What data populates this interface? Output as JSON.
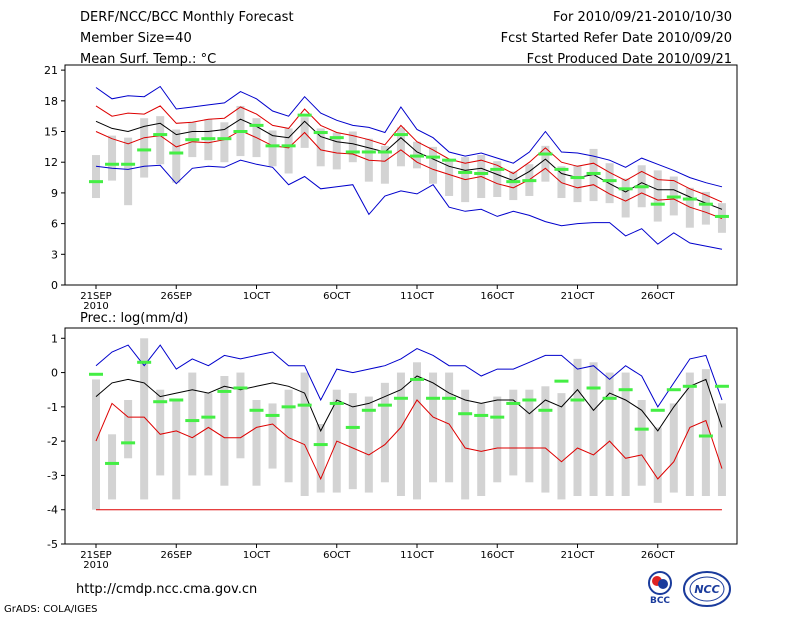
{
  "header": {
    "left": [
      "DERF/NCC/BCC Monthly Forecast",
      "Member Size=40",
      "Mean Surf. Temp.: °C"
    ],
    "right": [
      "For 2010/09/21-2010/10/30",
      "Fcst Started Refer Date 2010/09/20",
      "Fcst Produced Date 2010/09/21"
    ]
  },
  "footer": {
    "url": "http://cmdp.ncc.cma.gov.cn",
    "grads": "GrADS: COLA/IGES",
    "logo_left": "BCC",
    "logo_right": "NCC"
  },
  "colors": {
    "max": "#0000cc",
    "min": "#0000cc",
    "mean": "#000000",
    "spread": "#dd0000",
    "box": "#d3d3d3",
    "obs": "#44ee44",
    "baseline": "#dd0000"
  },
  "chart_data": [
    {
      "type": "line",
      "title": "Mean Surf. Temp.: °C",
      "xlabel": "",
      "ylabel": "°C",
      "x": [
        1,
        2,
        3,
        4,
        5,
        6,
        7,
        8,
        9,
        10,
        11,
        12,
        13,
        14,
        15,
        16,
        17,
        18,
        19,
        20,
        21,
        22,
        23,
        24,
        25,
        26,
        27,
        28,
        29,
        30,
        31,
        32,
        33,
        34,
        35,
        36,
        37,
        38,
        39,
        40
      ],
      "xtick_values": [
        1,
        6,
        11,
        16,
        21,
        26,
        31,
        36
      ],
      "xtick_labels": [
        "21SEP\n2010",
        "26SEP",
        "1OCT",
        "6OCT",
        "11OCT",
        "16OCT",
        "21OCT",
        "26OCT"
      ],
      "ylim": [
        0,
        21.5
      ],
      "yticks": [
        0,
        3,
        6,
        9,
        12,
        15,
        18,
        21
      ],
      "series": [
        {
          "name": "max",
          "values": [
            19.3,
            18.2,
            18.5,
            18.4,
            19.4,
            17.2,
            17.4,
            17.6,
            17.8,
            18.9,
            18.2,
            17.0,
            16.5,
            18.4,
            16.8,
            16.1,
            15.6,
            15.4,
            14.9,
            17.4,
            15.2,
            14.4,
            13.0,
            12.6,
            12.9,
            12.4,
            11.9,
            13.0,
            15.0,
            13.0,
            12.9,
            12.6,
            12.2,
            11.5,
            12.4,
            11.8,
            11.2,
            10.5,
            10.0,
            9.6
          ]
        },
        {
          "name": "upper",
          "values": [
            17.5,
            16.5,
            16.8,
            16.7,
            17.5,
            15.8,
            15.9,
            16.2,
            16.3,
            17.4,
            16.7,
            15.6,
            15.3,
            17.2,
            15.6,
            14.9,
            14.6,
            14.2,
            13.7,
            15.6,
            14.0,
            13.2,
            12.3,
            11.9,
            12.2,
            11.7,
            10.9,
            12.0,
            13.4,
            12.0,
            11.6,
            11.9,
            11.0,
            10.2,
            11.1,
            10.3,
            10.2,
            9.4,
            8.8,
            8.1
          ]
        },
        {
          "name": "mean",
          "values": [
            16.0,
            15.3,
            15.0,
            15.5,
            15.8,
            14.7,
            15.0,
            15.0,
            15.2,
            16.2,
            15.5,
            14.6,
            14.4,
            16.0,
            14.5,
            14.0,
            13.8,
            13.4,
            13.0,
            14.4,
            13.0,
            12.3,
            11.6,
            11.2,
            11.4,
            10.8,
            10.2,
            11.1,
            12.3,
            10.9,
            10.5,
            10.8,
            9.9,
            9.1,
            10.0,
            9.3,
            9.3,
            8.6,
            8.0,
            7.4
          ]
        },
        {
          "name": "lower",
          "values": [
            15.0,
            14.3,
            13.8,
            14.4,
            14.6,
            13.5,
            14.0,
            13.9,
            14.2,
            15.1,
            14.4,
            13.6,
            13.4,
            14.9,
            13.2,
            12.9,
            12.8,
            12.2,
            12.1,
            13.2,
            12.0,
            11.3,
            10.8,
            10.3,
            10.6,
            9.9,
            9.5,
            10.3,
            11.4,
            10.0,
            9.5,
            9.8,
            8.9,
            8.2,
            9.0,
            8.3,
            8.4,
            7.6,
            7.1,
            6.5
          ]
        },
        {
          "name": "min",
          "values": [
            11.6,
            11.4,
            11.3,
            11.6,
            11.7,
            9.9,
            11.4,
            11.6,
            11.5,
            12.2,
            11.8,
            11.5,
            9.8,
            10.6,
            9.4,
            9.6,
            9.8,
            6.9,
            8.7,
            9.2,
            8.9,
            9.8,
            7.6,
            7.2,
            7.4,
            6.7,
            7.2,
            6.8,
            6.2,
            5.8,
            6.0,
            6.1,
            6.1,
            4.8,
            5.5,
            4.0,
            5.1,
            4.1,
            3.8,
            3.5
          ]
        }
      ],
      "boxes": {
        "low": [
          8.5,
          10.2,
          7.8,
          10.5,
          11.8,
          10.0,
          12.5,
          12.2,
          12.0,
          12.6,
          12.5,
          11.6,
          10.9,
          13.4,
          11.6,
          11.3,
          12.0,
          10.1,
          9.9,
          11.6,
          11.4,
          9.9,
          8.7,
          8.1,
          8.5,
          8.6,
          8.3,
          8.7,
          10.1,
          8.5,
          8.1,
          8.2,
          8.0,
          6.6,
          7.6,
          6.2,
          6.8,
          5.6,
          5.9,
          5.1
        ],
        "high": [
          12.7,
          14.6,
          14.4,
          16.3,
          16.5,
          15.2,
          15.9,
          16.2,
          15.9,
          17.5,
          16.3,
          15.1,
          15.3,
          16.4,
          15.3,
          14.9,
          15.0,
          14.3,
          13.6,
          15.4,
          14.0,
          13.5,
          12.1,
          12.5,
          12.7,
          12.1,
          11.1,
          11.8,
          13.6,
          11.6,
          11.7,
          13.3,
          11.9,
          10.4,
          11.7,
          11.2,
          10.6,
          9.5,
          9.1,
          8.0
        ]
      },
      "observed": [
        10.1,
        11.8,
        11.8,
        13.2,
        14.7,
        12.9,
        14.2,
        14.3,
        14.3,
        15.0,
        15.6,
        13.6,
        13.6,
        16.6,
        14.9,
        14.4,
        13.0,
        13.0,
        13.0,
        14.7,
        12.6,
        12.5,
        12.2,
        11.0,
        10.9,
        11.3,
        10.1,
        10.2,
        12.8,
        11.3,
        10.5,
        10.9,
        10.2,
        9.4,
        9.6,
        7.9,
        8.6,
        8.4,
        7.9,
        6.7
      ]
    },
    {
      "type": "line",
      "title": "Prec.: log(mm/d)",
      "xlabel": "",
      "ylabel": "log(mm/d)",
      "x": [
        1,
        2,
        3,
        4,
        5,
        6,
        7,
        8,
        9,
        10,
        11,
        12,
        13,
        14,
        15,
        16,
        17,
        18,
        19,
        20,
        21,
        22,
        23,
        24,
        25,
        26,
        27,
        28,
        29,
        30,
        31,
        32,
        33,
        34,
        35,
        36,
        37,
        38,
        39,
        40
      ],
      "xtick_values": [
        1,
        6,
        11,
        16,
        21,
        26,
        31,
        36
      ],
      "xtick_labels": [
        "21SEP\n2010",
        "26SEP",
        "1OCT",
        "6OCT",
        "11OCT",
        "16OCT",
        "21OCT",
        "26OCT"
      ],
      "ylim": [
        -5,
        1.3
      ],
      "yticks": [
        -5,
        -4,
        -3,
        -2,
        -1,
        0,
        1
      ],
      "baseline": -4,
      "series": [
        {
          "name": "max",
          "values": [
            0.2,
            0.6,
            0.8,
            0.2,
            0.8,
            0.1,
            0.4,
            0.2,
            0.5,
            0.4,
            0.5,
            0.6,
            0.2,
            0.2,
            -0.8,
            0.1,
            0.0,
            0.1,
            0.2,
            0.4,
            0.7,
            0.5,
            0.2,
            0.2,
            -0.1,
            0.1,
            0.1,
            0.3,
            0.5,
            0.5,
            0.1,
            0.2,
            -0.2,
            0.2,
            -0.1,
            -1.0,
            -0.3,
            0.4,
            0.5,
            -0.8
          ]
        },
        {
          "name": "mean",
          "values": [
            -0.7,
            -0.3,
            -0.2,
            -0.3,
            -0.7,
            -0.6,
            -0.5,
            -0.6,
            -0.4,
            -0.5,
            -0.4,
            -0.3,
            -0.4,
            -0.6,
            -1.7,
            -0.8,
            -1.0,
            -0.9,
            -0.7,
            -0.5,
            -0.1,
            -0.3,
            -0.6,
            -0.8,
            -0.9,
            -0.8,
            -0.8,
            -1.2,
            -0.8,
            -1.0,
            -0.5,
            -1.1,
            -0.6,
            -0.8,
            -1.1,
            -1.7,
            -1.0,
            -0.4,
            -0.2,
            -1.6
          ]
        },
        {
          "name": "spread",
          "values": [
            -2.0,
            -0.9,
            -1.3,
            -1.3,
            -1.8,
            -1.7,
            -1.9,
            -1.6,
            -1.9,
            -1.9,
            -1.6,
            -1.5,
            -1.9,
            -2.1,
            -3.1,
            -2.0,
            -2.2,
            -2.4,
            -2.1,
            -1.6,
            -0.8,
            -1.3,
            -1.5,
            -2.2,
            -2.3,
            -2.2,
            -2.2,
            -2.2,
            -2.2,
            -2.6,
            -2.2,
            -2.4,
            -2.0,
            -2.5,
            -2.4,
            -3.1,
            -2.6,
            -1.6,
            -1.4,
            -2.8
          ]
        }
      ],
      "boxes": {
        "low": [
          -4.0,
          -3.7,
          -2.5,
          -3.7,
          -3.0,
          -3.7,
          -3.0,
          -3.0,
          -3.3,
          -2.5,
          -3.3,
          -2.8,
          -3.2,
          -3.6,
          -3.5,
          -3.5,
          -3.4,
          -3.5,
          -3.2,
          -3.6,
          -3.7,
          -3.2,
          -3.2,
          -3.7,
          -3.6,
          -3.2,
          -3.0,
          -3.2,
          -3.5,
          -3.7,
          -3.6,
          -3.6,
          -3.6,
          -3.6,
          -3.3,
          -3.8,
          -3.5,
          -3.6,
          -3.6,
          -3.6
        ],
        "high": [
          -0.2,
          -1.8,
          -0.8,
          1.0,
          -0.5,
          -0.8,
          0.0,
          -0.6,
          -0.1,
          0.0,
          -0.8,
          -0.9,
          -0.5,
          0.0,
          -1.5,
          -0.5,
          -0.6,
          -0.7,
          -0.3,
          0.0,
          0.3,
          0.0,
          0.0,
          -0.5,
          -0.9,
          -0.7,
          -0.5,
          -0.5,
          -0.4,
          -0.6,
          0.4,
          0.3,
          0.0,
          0.0,
          -0.8,
          -1.6,
          -0.9,
          0.0,
          0.1,
          -0.9
        ]
      },
      "observed": [
        -0.05,
        -2.65,
        -2.05,
        0.3,
        -0.85,
        -0.8,
        -1.4,
        -1.3,
        -0.55,
        -0.45,
        -1.1,
        -1.25,
        -1.0,
        -0.95,
        -2.1,
        -0.9,
        -1.6,
        -1.1,
        -0.95,
        -0.75,
        -0.2,
        -0.75,
        -0.75,
        -1.2,
        -1.25,
        -1.3,
        -0.9,
        -0.8,
        -1.1,
        -0.25,
        -0.8,
        -0.45,
        -0.75,
        -0.5,
        -1.65,
        -1.1,
        -0.5,
        -0.4,
        -1.85,
        -0.4
      ]
    }
  ]
}
